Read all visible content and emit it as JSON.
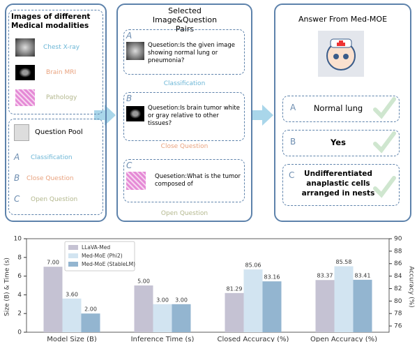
{
  "diagram": {
    "modalities": {
      "title": "Images of different Medical modalities",
      "items": [
        "Chest X-ray",
        "Brain MRI",
        "Pathology"
      ]
    },
    "question_pool": {
      "title": "Question Pool",
      "letters": [
        "A",
        "B",
        "C"
      ],
      "types": [
        "Classification",
        "Close Question",
        "Open Question"
      ]
    },
    "pairs": {
      "title": "Selected Image&Question Pairs",
      "items": [
        {
          "letter": "A",
          "question": "Quesetion:Is the given image showing normal lung or pneumonia?",
          "type": "Classification"
        },
        {
          "letter": "B",
          "question": "Quesetion:Is brain tumor white or gray relative to other tissues?",
          "type": "Close Question"
        },
        {
          "letter": "C",
          "question": "Quesetion:What is the tumor composed of",
          "type": "Open Question"
        }
      ]
    },
    "answers": {
      "title": "Answer From Med-MOE",
      "items": [
        {
          "letter": "A",
          "text": "Normal lung"
        },
        {
          "letter": "B",
          "text": "Yes"
        },
        {
          "letter": "C",
          "text": "Undifferentiated anaplastic cells arranged in nests"
        }
      ]
    }
  },
  "chart_data": {
    "type": "bar",
    "categories": [
      "Model Size (B)",
      "Inference Time (s)",
      "Closed Accuracy (%)",
      "Open Accuracy (%)"
    ],
    "category_axes": [
      "y",
      "y",
      "y2",
      "y2"
    ],
    "series": [
      {
        "name": "LLaVA-Med",
        "color": "#c5c2d3",
        "values": [
          7.0,
          5.0,
          81.29,
          83.37
        ],
        "value_labels": [
          "7.00",
          "5.00",
          "81.29",
          "83.37"
        ]
      },
      {
        "name": "Med-MoE (Phi2)",
        "color": "#d2e4f1",
        "values": [
          3.6,
          3.0,
          85.06,
          85.58
        ],
        "value_labels": [
          "3.60",
          "3.00",
          "85.06",
          "85.58"
        ]
      },
      {
        "name": "Med-MoE (StableLM)",
        "color": "#93b5d0",
        "values": [
          2.0,
          3.0,
          83.16,
          83.41
        ],
        "value_labels": [
          "2.00",
          "3.00",
          "83.16",
          "83.41"
        ]
      }
    ],
    "ylabel": "Size (B) & Time (s)",
    "y2label": "Accuracy (%)",
    "ylim": [
      0,
      10
    ],
    "yticks": [
      0,
      2,
      4,
      6,
      8,
      10
    ],
    "y2lim": [
      75,
      90
    ],
    "y2ticks": [
      76,
      78,
      80,
      82,
      84,
      86,
      88,
      90
    ],
    "legend": "upper-left"
  }
}
